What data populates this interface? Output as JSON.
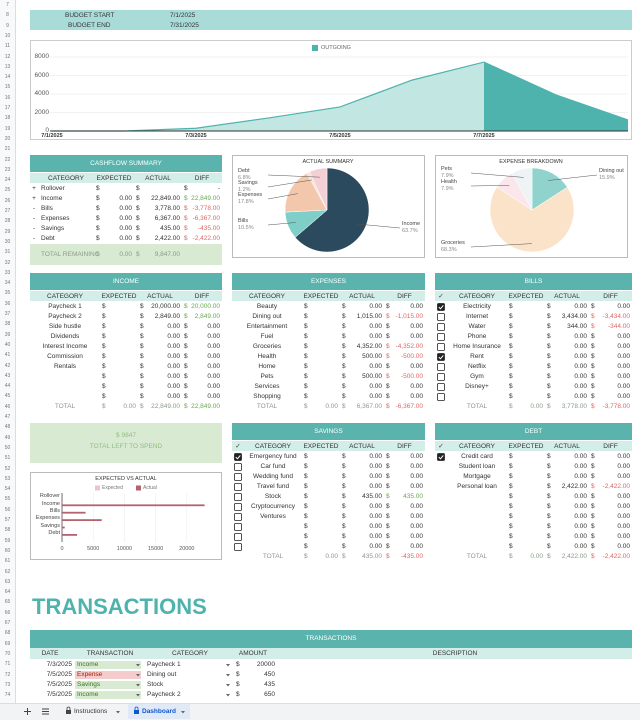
{
  "row_numbers": [
    7,
    8,
    9,
    10,
    11,
    12,
    13,
    14,
    15,
    16,
    17,
    18,
    19,
    20,
    21,
    22,
    23,
    24,
    25,
    26,
    27,
    28,
    29,
    30,
    31,
    32,
    33,
    34,
    35,
    36,
    37,
    38,
    39,
    40,
    41,
    42,
    43,
    44,
    45,
    46,
    47,
    48,
    49,
    50,
    51,
    52,
    53,
    54,
    55,
    56,
    57,
    58,
    59,
    60,
    61,
    62,
    63,
    64,
    65,
    66,
    67,
    68,
    69,
    70,
    71,
    72,
    73,
    74
  ],
  "header": {
    "budget_start_label": "BUDGET START",
    "budget_start": "7/1/2025",
    "budget_end_label": "BUDGET END",
    "budget_end": "7/31/2025"
  },
  "outgoing_chart": {
    "type": "area",
    "legend": "OUTGOING",
    "color": "#4fb3ad",
    "x": [
      "7/1/2025",
      null,
      "7/3/2025",
      null,
      "7/5/2025",
      null,
      "7/7/2025",
      null,
      null
    ],
    "values": [
      0,
      0,
      300,
      1400,
      2600,
      5500,
      7450,
      3900,
      1200
    ],
    "ylim": [
      0,
      8000
    ],
    "yticks": [
      0,
      2000,
      4000,
      6000,
      8000
    ],
    "grid": true
  },
  "cashflow_summary": {
    "title": "CASHFLOW SUMMARY",
    "headers": [
      "CATEGORY",
      "EXPECTED",
      "ACTUAL",
      "DIFF"
    ],
    "rows": [
      [
        "+",
        "Rollover",
        "$",
        "$",
        "$ -"
      ],
      [
        "+",
        "Income",
        "$ 0.00",
        "$ 22,849.00",
        "$ 22,849.00"
      ],
      [
        "-",
        "Bills",
        "$ 0.00",
        "$ 3,778.00",
        "$ -3,778.00"
      ],
      [
        "-",
        "Expenses",
        "$ 0.00",
        "$ 6,367.00",
        "$ -6,367.00"
      ],
      [
        "-",
        "Savings",
        "$ 0.00",
        "$ 435.00",
        "$ -435.00"
      ],
      [
        "-",
        "Debt",
        "$ 0.00",
        "$ 2,422.00",
        "$ -2,422.00"
      ]
    ],
    "total": [
      "TOTAL REMAINING",
      "$ 0.00",
      "$ 9,847.00"
    ]
  },
  "actual_summary": {
    "type": "pie",
    "title": "ACTUAL SUMMARY",
    "labels": [
      "Income",
      "Bills",
      "Expenses",
      "Savings",
      "Debt"
    ],
    "values": [
      63.7,
      10.5,
      17.8,
      1.2,
      6.8
    ],
    "value_labels": [
      "63.7%",
      "10.5%",
      "17.8%",
      "1.2%",
      "6.8%"
    ],
    "colors": [
      "#2b4a5e",
      "#7fcfc8",
      "#f3c7ab",
      "#f7e4d6",
      "#f4cfd6"
    ]
  },
  "expense_breakdown": {
    "type": "pie",
    "title": "EXPENSE BREAKDOWN",
    "labels": [
      "Dining out",
      "Groceries",
      "Health",
      "Pets"
    ],
    "values": [
      15.9,
      68.3,
      7.9,
      7.9
    ],
    "value_labels": [
      "15.9%",
      "68.3%",
      "7.9%",
      "7.9%"
    ],
    "colors": [
      "#8fd3cc",
      "#fae3c9",
      "#fbe6ec",
      "#eef4f6"
    ]
  },
  "income": {
    "title": "INCOME",
    "headers": [
      "CATEGORY",
      "EXPECTED",
      "ACTUAL",
      "DIFF"
    ],
    "rows": [
      [
        "Paycheck 1",
        "$",
        "$ 20,000.00",
        "$ 20,000.00"
      ],
      [
        "Paycheck 2",
        "$",
        "$ 2,849.00",
        "$ 2,849.00"
      ],
      [
        "Side hustle",
        "$",
        "$ 0.00",
        "$ 0.00"
      ],
      [
        "Dividends",
        "$",
        "$ 0.00",
        "$ 0.00"
      ],
      [
        "Interest Income",
        "$",
        "$ 0.00",
        "$ 0.00"
      ],
      [
        "Commission",
        "$",
        "$ 0.00",
        "$ 0.00"
      ],
      [
        "Rentals",
        "$",
        "$ 0.00",
        "$ 0.00"
      ],
      [
        "$",
        "$ 0.00",
        "$ 0.00"
      ],
      [
        "$",
        "$ 0.00",
        "$ 0.00"
      ],
      [
        "$",
        "$ 0.00",
        "$ 0.00"
      ]
    ],
    "total": [
      "TOTAL",
      "$ 0.00",
      "$ 22,849.00",
      "$ 22,849.00"
    ]
  },
  "expenses": {
    "title": "EXPENSES",
    "headers": [
      "CATEGORY",
      "EXPECTED",
      "ACTUAL",
      "DIFF"
    ],
    "rows": [
      [
        "Beauty",
        "$",
        "$ 0.00",
        "$ 0.00"
      ],
      [
        "Dining out",
        "$",
        "$ 1,015.00",
        "$ -1,015.00"
      ],
      [
        "Entertainment",
        "$",
        "$ 0.00",
        "$ 0.00"
      ],
      [
        "Fuel",
        "$",
        "$ 0.00",
        "$ 0.00"
      ],
      [
        "Groceries",
        "$",
        "$ 4,352.00",
        "$ -4,352.00"
      ],
      [
        "Health",
        "$",
        "$ 500.00",
        "$ -500.00"
      ],
      [
        "Home",
        "$",
        "$ 0.00",
        "$ 0.00"
      ],
      [
        "Pets",
        "$",
        "$ 500.00",
        "$ -500.00"
      ],
      [
        "Services",
        "$",
        "$ 0.00",
        "$ 0.00"
      ],
      [
        "Shopping",
        "$",
        "$ 0.00",
        "$ 0.00"
      ]
    ],
    "total": [
      "TOTAL",
      "$ 0.00",
      "$ 6,367.00",
      "$ -6,367.00"
    ]
  },
  "bills": {
    "title": "BILLS",
    "headers": [
      "✓",
      "CATEGORY",
      "EXPECTED",
      "ACTUAL",
      "DIFF"
    ],
    "rows": [
      [
        "Electricity",
        "$",
        "$ 0.00",
        "$ 0.00"
      ],
      [
        "Internet",
        "$",
        "$ 3,434.00",
        "$ -3,434.00"
      ],
      [
        "Water",
        "$",
        "$ 344.00",
        "$ -344.00"
      ],
      [
        "Phone",
        "$",
        "$ 0.00",
        "$ 0.00"
      ],
      [
        "Home Insurance",
        "$",
        "$ 0.00",
        "$ 0.00"
      ],
      [
        "Rent",
        "$",
        "$ 0.00",
        "$ 0.00"
      ],
      [
        "Netflix",
        "$",
        "$ 0.00",
        "$ 0.00"
      ],
      [
        "Gym",
        "$",
        "$ 0.00",
        "$ 0.00"
      ],
      [
        "Disney+",
        "$",
        "$ 0.00",
        "$ 0.00"
      ],
      [
        "$",
        "$ 0.00",
        "$ 0.00"
      ]
    ],
    "checked": [
      true,
      false,
      false,
      false,
      false,
      true,
      false,
      false,
      false,
      false
    ],
    "total": [
      "TOTAL",
      "$ 0.00",
      "$ 3,778.00",
      "$ -3,778.00"
    ]
  },
  "total_left": {
    "amount": "$ 9847",
    "label": "TOTAL LEFT TO SPEND"
  },
  "expected_vs_actual": {
    "type": "bar",
    "orientation": "horizontal",
    "title": "EXPECTED VS ACTUAL",
    "categories": [
      "Rollover",
      "Income",
      "Bills",
      "Expenses",
      "Savings",
      "Debt"
    ],
    "series": [
      {
        "name": "Expected",
        "color": "#e8c6cb",
        "values": [
          0,
          0,
          0,
          0,
          0,
          0
        ]
      },
      {
        "name": "Actual",
        "color": "#b5626f",
        "values": [
          0,
          22849,
          3778,
          6367,
          435,
          2422
        ]
      }
    ],
    "xlim": [
      0,
      25000
    ],
    "xticks": [
      0,
      5000,
      10000,
      15000,
      20000
    ]
  },
  "savings": {
    "title": "SAVINGS",
    "headers": [
      "✓",
      "CATEGORY",
      "EXPECTED",
      "ACTUAL",
      "DIFF"
    ],
    "rows": [
      [
        "Emergency fund",
        "$",
        "$ 0.00",
        "$ 0.00"
      ],
      [
        "Car fund",
        "$",
        "$ 0.00",
        "$ 0.00"
      ],
      [
        "Wedding fund",
        "$",
        "$ 0.00",
        "$ 0.00"
      ],
      [
        "Travel fund",
        "$",
        "$ 0.00",
        "$ 0.00"
      ],
      [
        "Stock",
        "$",
        "$ 435.00",
        "$ 435.00"
      ],
      [
        "Cryptocurrency",
        "$",
        "$ 0.00",
        "$ 0.00"
      ],
      [
        "Ventures",
        "$",
        "$ 0.00",
        "$ 0.00"
      ],
      [
        "$",
        "$ 0.00",
        "$ 0.00"
      ],
      [
        "$",
        "$ 0.00",
        "$ 0.00"
      ],
      [
        "$",
        "$ 0.00",
        "$ 0.00"
      ]
    ],
    "checked": [
      true,
      false,
      false,
      false,
      false,
      false,
      false,
      false,
      false,
      false
    ],
    "total": [
      "TOTAL",
      "$ 0.00",
      "$ 435.00",
      "$ -435.00"
    ]
  },
  "debt": {
    "title": "DEBT",
    "headers": [
      "✓",
      "CATEGORY",
      "EXPECTED",
      "ACTUAL",
      "DIFF"
    ],
    "rows": [
      [
        "Credit card",
        "$",
        "$ 0.00",
        "$ 0.00"
      ],
      [
        "Student loan",
        "$",
        "$ 0.00",
        "$ 0.00"
      ],
      [
        "Mortgage",
        "$",
        "$ 0.00",
        "$ 0.00"
      ],
      [
        "Personal loan",
        "$",
        "$ 2,422.00",
        "$ -2,422.00"
      ],
      [
        "$",
        "$ 0.00",
        "$ 0.00"
      ],
      [
        "$",
        "$ 0.00",
        "$ 0.00"
      ],
      [
        "$",
        "$ 0.00",
        "$ 0.00"
      ],
      [
        "$",
        "$ 0.00",
        "$ 0.00"
      ],
      [
        "$",
        "$ 0.00",
        "$ 0.00"
      ],
      [
        "$",
        "$ 0.00",
        "$ 0.00"
      ]
    ],
    "checked": [
      true
    ],
    "total": [
      "TOTAL",
      "$ 0.00",
      "$ 2,422.00",
      "$ -2,422.00"
    ]
  },
  "transactions": {
    "heading": "TRANSACTIONS",
    "title": "TRANSACTIONS",
    "headers": [
      "DATE",
      "TRANSACTION",
      "CATEGORY",
      "AMOUNT",
      "DESCRIPTION"
    ],
    "currency": "$",
    "rows": [
      [
        "7/3/2025",
        "Income",
        "Paycheck 1",
        20000
      ],
      [
        "7/5/2025",
        "Expense",
        "Dining out",
        450
      ],
      [
        "7/5/2025",
        "Savings",
        "Stock",
        435
      ],
      [
        "7/5/2025",
        "Income",
        "Paycheck 2",
        650
      ]
    ],
    "chip_colors": [
      "#d9ead3",
      "#f4cccc",
      "#d9ead3",
      "#d9ead3"
    ],
    "chip_text_colors": [
      "#38761d",
      "#a61c00",
      "#38761d",
      "#38761d"
    ]
  },
  "tabs": [
    "Instructions",
    "Dashboard"
  ],
  "active_tab": 1
}
